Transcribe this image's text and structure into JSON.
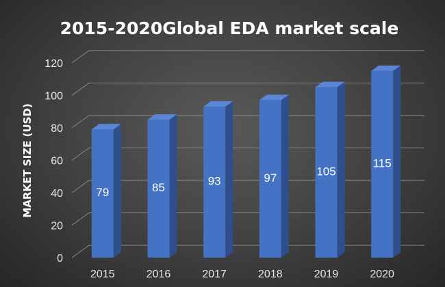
{
  "chart_data": {
    "type": "bar",
    "title": "2015-2020Global EDA market scale",
    "xlabel": "",
    "ylabel": "MARKET SIZE (USD)",
    "categories": [
      "2015",
      "2016",
      "2017",
      "2018",
      "2019",
      "2020"
    ],
    "values": [
      79,
      85,
      93,
      97,
      105,
      115
    ],
    "ylim": [
      0,
      120
    ],
    "yticks": [
      0,
      20,
      40,
      60,
      80,
      100,
      120
    ],
    "grid": true,
    "legend": "none",
    "bar_color": "#4472c4",
    "data_labels": true
  }
}
